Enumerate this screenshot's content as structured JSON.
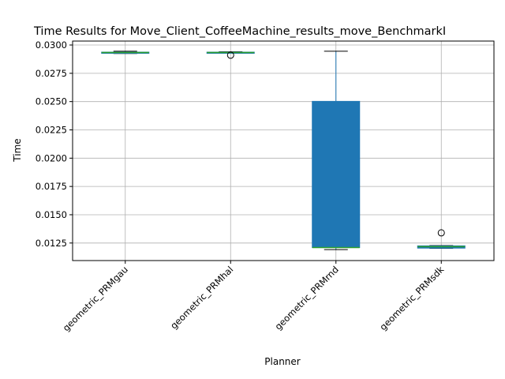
{
  "chart_data": {
    "type": "box",
    "title": "Time Results for Move_Client_CoffeeMachine_results_move_BenchmarkI",
    "xlabel": "Planner",
    "ylabel": "Time",
    "categories": [
      "geometric_PRMgau",
      "geometric_PRMhal",
      "geometric_PRMrnd",
      "geometric_PRMsdk"
    ],
    "ylim": [
      0.01095,
      0.03035
    ],
    "yticks": [
      0.0125,
      0.015,
      0.0175,
      0.02,
      0.0225,
      0.025,
      0.0275,
      0.03
    ],
    "ytick_labels": [
      "0.0125",
      "0.0150",
      "0.0175",
      "0.0200",
      "0.0225",
      "0.0250",
      "0.0275",
      "0.0300"
    ],
    "grid": true,
    "boxes": [
      {
        "q1": 0.02932,
        "median": 0.02934,
        "q3": 0.02937,
        "whislo": 0.02925,
        "whishi": 0.02945,
        "fliers": []
      },
      {
        "q1": 0.02932,
        "median": 0.02934,
        "q3": 0.02937,
        "whislo": 0.0293,
        "whishi": 0.0294,
        "fliers": [
          0.0291
        ]
      },
      {
        "q1": 0.0121,
        "median": 0.0121,
        "q3": 0.02502,
        "whislo": 0.01192,
        "whishi": 0.02945,
        "fliers": []
      },
      {
        "q1": 0.01205,
        "median": 0.01218,
        "q3": 0.01225,
        "whislo": 0.01203,
        "whishi": 0.01228,
        "fliers": [
          0.0134
        ]
      }
    ],
    "colors": {
      "box": "#1f77b4",
      "median": "#2ca02c",
      "whisker": "#1f77b4",
      "cap": "#000000",
      "grid": "#b0b0b0",
      "axes": "#000000"
    }
  }
}
